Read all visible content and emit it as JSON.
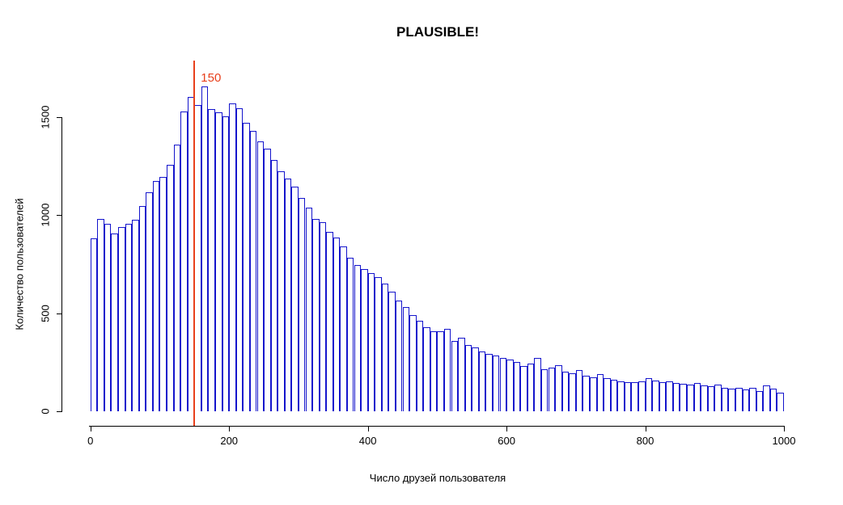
{
  "title": "PLAUSIBLE!",
  "chart_data": {
    "type": "bar",
    "subtype": "histogram",
    "title": "PLAUSIBLE!",
    "xlabel": "Число друзей пользователя",
    "ylabel": "Количество пользователей",
    "x_range": [
      0,
      1000
    ],
    "y_range": [
      0,
      1500
    ],
    "bin_width": 10,
    "x_ticks": [
      0,
      200,
      400,
      600,
      800,
      1000
    ],
    "y_ticks": [
      0,
      500,
      1000,
      1500
    ],
    "grid": false,
    "legend": null,
    "bar_fill": "#ffffff",
    "bar_border": "#1414cc",
    "marker": {
      "value": 150,
      "label": "150",
      "color": "#e8401c"
    },
    "bin_starts": [
      0,
      10,
      20,
      30,
      40,
      50,
      60,
      70,
      80,
      90,
      100,
      110,
      120,
      130,
      140,
      150,
      160,
      170,
      180,
      190,
      200,
      210,
      220,
      230,
      240,
      250,
      260,
      270,
      280,
      290,
      300,
      310,
      320,
      330,
      340,
      350,
      360,
      370,
      380,
      390,
      400,
      410,
      420,
      430,
      440,
      450,
      460,
      470,
      480,
      490,
      500,
      510,
      520,
      530,
      540,
      550,
      560,
      570,
      580,
      590,
      600,
      610,
      620,
      630,
      640,
      650,
      660,
      670,
      680,
      690,
      700,
      710,
      720,
      730,
      740,
      750,
      760,
      770,
      780,
      790,
      800,
      810,
      820,
      830,
      840,
      850,
      860,
      870,
      880,
      890,
      900,
      910,
      920,
      930,
      940,
      950,
      960,
      970,
      980,
      990
    ],
    "values": [
      880,
      980,
      958,
      905,
      938,
      955,
      975,
      1045,
      1115,
      1175,
      1195,
      1255,
      1360,
      1530,
      1605,
      1560,
      1655,
      1540,
      1525,
      1505,
      1570,
      1545,
      1470,
      1430,
      1375,
      1340,
      1280,
      1225,
      1185,
      1145,
      1090,
      1040,
      980,
      965,
      915,
      885,
      840,
      785,
      745,
      724,
      705,
      685,
      650,
      608,
      566,
      532,
      491,
      463,
      429,
      408,
      410,
      422,
      360,
      374,
      339,
      326,
      305,
      291,
      285,
      271,
      264,
      250,
      229,
      243,
      271,
      216,
      223,
      236,
      202,
      195,
      209,
      181,
      175,
      188,
      168,
      161,
      154,
      150,
      147,
      152,
      168,
      155,
      148,
      152,
      145,
      142,
      138,
      145,
      132,
      128,
      135,
      121,
      117,
      121,
      113,
      119,
      102,
      130,
      117,
      96
    ]
  }
}
